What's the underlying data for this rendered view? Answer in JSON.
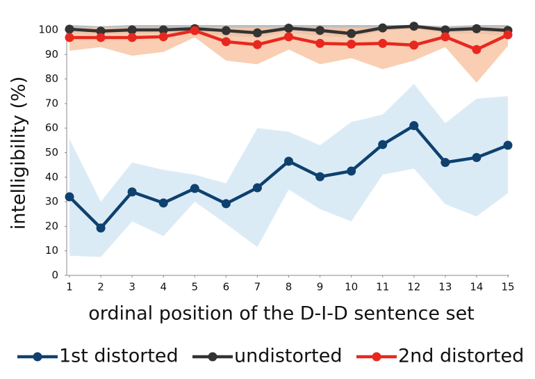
{
  "chart_data": {
    "type": "line",
    "x_label": "ordinal position of the D-I-D sentence set",
    "y_label": "intelligibility (%)",
    "x": [
      1,
      2,
      3,
      4,
      5,
      6,
      7,
      8,
      9,
      10,
      11,
      12,
      13,
      14,
      15
    ],
    "xlim": [
      1,
      15
    ],
    "xticks": [
      1,
      2,
      3,
      4,
      5,
      6,
      7,
      8,
      9,
      10,
      11,
      12,
      13,
      14,
      15
    ],
    "ylim": [
      0,
      100
    ],
    "yticks": [
      0,
      10,
      20,
      30,
      40,
      50,
      60,
      70,
      80,
      90,
      100
    ],
    "legend": "bottom",
    "series": [
      {
        "name": "1st distorted",
        "color": "#0e416e",
        "band_color": "#d5e7f5",
        "values": [
          32,
          19.3,
          34,
          29.5,
          35.4,
          29.2,
          35.7,
          46.5,
          40.2,
          42.5,
          53.3,
          61,
          46,
          48,
          53
        ],
        "upper": [
          55.5,
          30,
          46,
          43,
          41,
          37.5,
          60,
          58.5,
          53,
          62.5,
          65.5,
          78,
          62,
          72,
          73
        ],
        "lower": [
          8,
          7.5,
          22,
          16,
          30,
          21,
          11.5,
          35,
          27,
          22,
          41,
          43.5,
          29,
          24,
          33.5
        ]
      },
      {
        "name": "undistorted",
        "color": "#333333",
        "band_color": "#a8a8a8",
        "values": [
          100.3,
          99.5,
          100,
          100,
          100.5,
          99.7,
          98.8,
          100.7,
          99.8,
          98.5,
          100.8,
          101.5,
          100,
          100.5,
          99.8
        ],
        "upper": [
          102,
          101.5,
          102,
          102,
          102,
          102,
          102,
          102,
          102,
          102,
          102,
          102,
          101.5,
          102,
          102
        ],
        "lower": [
          98.5,
          98,
          98.5,
          98.5,
          99,
          97.5,
          97,
          99,
          97.5,
          97,
          99.5,
          100.5,
          98.5,
          98.5,
          97.5
        ]
      },
      {
        "name": "2nd distorted",
        "color": "#e8281e",
        "band_color": "#f8c6a6",
        "values": [
          96.9,
          96.9,
          96.9,
          97.2,
          99.7,
          95.2,
          94,
          97.2,
          94.5,
          94.2,
          94.5,
          93.8,
          97.2,
          92,
          98
        ],
        "upper": [
          101,
          101,
          101,
          101,
          101,
          101,
          101,
          101,
          101,
          101,
          101,
          101,
          100,
          101,
          101
        ],
        "lower": [
          91.5,
          93,
          89.5,
          91,
          97,
          87.5,
          86,
          92,
          86,
          88.5,
          84,
          87.5,
          93,
          78.5,
          93.5
        ]
      }
    ]
  }
}
